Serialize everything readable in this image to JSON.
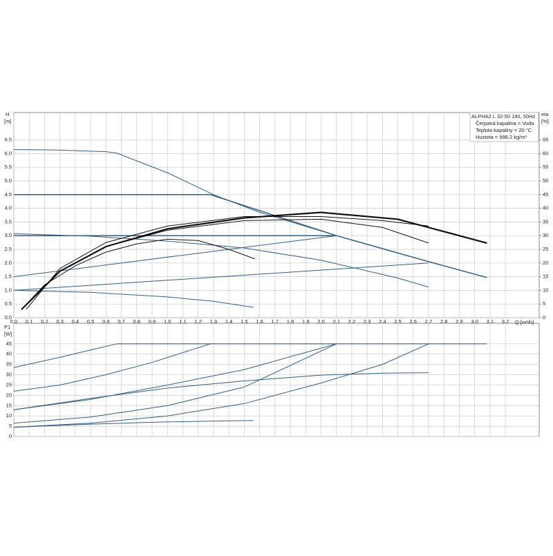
{
  "chart_data": [
    {
      "type": "line",
      "y_label": "H",
      "y_unit": "[m]",
      "y2_label": "eta",
      "y2_unit": "[%]",
      "x_label": "Q [m³/h]",
      "info_lines": [
        "ALPHA2 L 32-50 180, 50Hz",
        "Čerpaná kapalina = Voda",
        "Teplota kapaliny = 20 °C",
        "Hustota = 998.2 kg/m³"
      ],
      "xlim": [
        0,
        3.42
      ],
      "ylim": [
        0,
        7.5
      ],
      "y2lim": [
        0,
        75
      ],
      "grid": true,
      "xticks": [
        {
          "value": 0,
          "label": "0,0"
        },
        {
          "value": 0.1,
          "label": "0,1"
        },
        {
          "value": 0.2,
          "label": "0,2"
        },
        {
          "value": 0.3,
          "label": "0,3"
        },
        {
          "value": 0.4,
          "label": "0,4"
        },
        {
          "value": 0.5,
          "label": "0,5"
        },
        {
          "value": 0.6,
          "label": "0,6"
        },
        {
          "value": 0.7,
          "label": "0,7"
        },
        {
          "value": 0.8,
          "label": "0,8"
        },
        {
          "value": 0.9,
          "label": "0,9"
        },
        {
          "value": 1.0,
          "label": "1,0"
        },
        {
          "value": 1.1,
          "label": "1,1"
        },
        {
          "value": 1.2,
          "label": "1,2"
        },
        {
          "value": 1.3,
          "label": "1,3"
        },
        {
          "value": 1.4,
          "label": "1,4"
        },
        {
          "value": 1.5,
          "label": "1,5"
        },
        {
          "value": 1.6,
          "label": "1,6"
        },
        {
          "value": 1.7,
          "label": "1,7"
        },
        {
          "value": 1.8,
          "label": "1,8"
        },
        {
          "value": 1.9,
          "label": "1,9"
        },
        {
          "value": 2.0,
          "label": "2,0"
        },
        {
          "value": 2.1,
          "label": "2,1"
        },
        {
          "value": 2.2,
          "label": "2,2"
        },
        {
          "value": 2.3,
          "label": "2,3"
        },
        {
          "value": 2.4,
          "label": "2,4"
        },
        {
          "value": 2.5,
          "label": "2,5"
        },
        {
          "value": 2.6,
          "label": "2,6"
        },
        {
          "value": 2.7,
          "label": "2,7"
        },
        {
          "value": 2.8,
          "label": "2,8"
        },
        {
          "value": 2.9,
          "label": "2,9"
        },
        {
          "value": 3.0,
          "label": "3,0"
        },
        {
          "value": 3.1,
          "label": "3,1"
        },
        {
          "value": 3.2,
          "label": "3,2"
        }
      ],
      "yticks": [
        {
          "value": 0,
          "label": "0.0"
        },
        0.5,
        {
          "value": 1,
          "label": "1.0"
        },
        1.5,
        {
          "value": 2,
          "label": "2.0"
        },
        2.5,
        {
          "value": 3,
          "label": "3.0"
        },
        3.5,
        {
          "value": 4,
          "label": "4.0"
        },
        4.5,
        {
          "value": 5,
          "label": "5.0"
        },
        5.5,
        {
          "value": 6,
          "label": "6.0"
        },
        6.5
      ],
      "y2ticks": [
        0,
        5,
        10,
        15,
        20,
        25,
        30,
        35,
        40,
        45,
        50,
        55,
        60,
        65
      ],
      "series": [
        {
          "color": "#2f5d86",
          "width": 1,
          "x": [
            0,
            0.3,
            0.6,
            0.67,
            1.0,
            1.3,
            1.6,
            2.1,
            2.7,
            3.08
          ],
          "values": [
            6.15,
            6.13,
            6.07,
            6.02,
            5.3,
            4.5,
            3.85,
            3.0,
            2.05,
            1.47
          ]
        },
        {
          "color": "#2f5d86",
          "width": 1.5,
          "x": [
            0,
            1.28
          ],
          "values": [
            4.5,
            4.5
          ]
        },
        {
          "color": "#2f5d86",
          "width": 1.5,
          "x": [
            0,
            2.1
          ],
          "values": [
            3.0,
            3.0
          ]
        },
        {
          "color": "#2f5d86",
          "width": 1,
          "x": [
            0,
            2.1
          ],
          "values": [
            1.5,
            3.0
          ]
        },
        {
          "color": "#2f5d86",
          "width": 1,
          "x": [
            0,
            2.7
          ],
          "values": [
            1.0,
            2.0
          ]
        },
        {
          "color": "#2f5d86",
          "width": 1,
          "x": [
            0,
            0.5,
            1.0,
            1.5,
            2.0,
            2.5,
            2.7
          ],
          "values": [
            3.07,
            2.98,
            2.8,
            2.55,
            2.1,
            1.45,
            1.12
          ]
        },
        {
          "color": "#2f5d86",
          "width": 1,
          "x": [
            0,
            0.5,
            1.0,
            1.3,
            1.56
          ],
          "values": [
            1.0,
            0.93,
            0.76,
            0.6,
            0.38
          ]
        },
        {
          "color": "#2f5d86",
          "width": 1.5,
          "x": [
            1.28,
            2.1,
            2.7,
            3.08
          ],
          "values": [
            4.5,
            3.0,
            2.05,
            1.47
          ]
        },
        {
          "color": "#111111",
          "width": 1,
          "axis": "y2",
          "x": [
            0.05,
            0.2,
            0.4,
            0.6,
            0.8,
            1.0,
            1.2,
            1.4,
            1.57
          ],
          "values": [
            3,
            12,
            19,
            24,
            27,
            28.7,
            28.2,
            25,
            21.5
          ]
        },
        {
          "color": "#111111",
          "width": 1,
          "axis": "y2",
          "x": [
            0.05,
            0.3,
            0.6,
            1.0,
            1.5,
            2.0,
            2.4,
            2.7
          ],
          "values": [
            3,
            17,
            26,
            32,
            35.5,
            36,
            33,
            27.3
          ]
        },
        {
          "color": "#111111",
          "width": 1,
          "axis": "y2",
          "x": [
            0.08,
            0.3,
            0.6,
            1.0,
            1.5,
            2.0,
            2.4,
            2.7
          ],
          "values": [
            3,
            18,
            27.5,
            33.5,
            37,
            37,
            35.5,
            33.5
          ]
        },
        {
          "color": "#111111",
          "width": 2.2,
          "axis": "y2",
          "x": [
            0.05,
            0.3,
            0.6,
            1.0,
            1.5,
            2.0,
            2.5,
            3.08
          ],
          "values": [
            3,
            17,
            26,
            32.5,
            36.5,
            38.5,
            36,
            27.3
          ]
        }
      ]
    },
    {
      "type": "line",
      "y_label": "P1",
      "y_unit": "[W]",
      "xlim": [
        0,
        3.42
      ],
      "ylim": [
        0,
        55
      ],
      "grid": true,
      "xticks": [
        0,
        0.1,
        0.2,
        0.3,
        0.4,
        0.5,
        0.6,
        0.7,
        0.8,
        0.9,
        1,
        1.1,
        1.2,
        1.3,
        1.4,
        1.5,
        1.6,
        1.7,
        1.8,
        1.9,
        2,
        2.1,
        2.2,
        2.3,
        2.4,
        2.5,
        2.6,
        2.7,
        2.8,
        2.9,
        3,
        3.1,
        3.2
      ],
      "yticks": [
        0,
        5,
        10,
        15,
        20,
        25,
        30,
        35,
        40,
        45
      ],
      "series": [
        {
          "color": "#2f5d86",
          "width": 1.2,
          "x": [
            0.67,
            3.08
          ],
          "values": [
            45,
            45
          ]
        },
        {
          "color": "#2f5d86",
          "width": 1,
          "x": [
            0,
            0.3,
            0.67
          ],
          "values": [
            33.5,
            38.5,
            45
          ]
        },
        {
          "color": "#2f5d86",
          "width": 1,
          "x": [
            0,
            0.3,
            0.6,
            0.9,
            1.28
          ],
          "values": [
            22,
            25,
            30,
            36,
            45
          ]
        },
        {
          "color": "#2f5d86",
          "width": 1,
          "x": [
            0,
            0.5,
            1.0,
            1.5,
            2.1
          ],
          "values": [
            13,
            18,
            25,
            32.5,
            45
          ]
        },
        {
          "color": "#2f5d86",
          "width": 1,
          "x": [
            0,
            0.5,
            1.0,
            1.5,
            2.0,
            2.4,
            2.7
          ],
          "values": [
            13,
            18.5,
            23.5,
            27,
            29.8,
            30.8,
            31
          ]
        },
        {
          "color": "#2f5d86",
          "width": 1,
          "x": [
            0,
            0.5,
            1.0,
            1.5,
            2.1
          ],
          "values": [
            6.5,
            9.5,
            15,
            24,
            45
          ]
        },
        {
          "color": "#2f5d86",
          "width": 1,
          "x": [
            0,
            0.5,
            1.0,
            1.5,
            2.0,
            2.4,
            2.7
          ],
          "values": [
            4.5,
            6.5,
            10,
            16,
            26,
            35,
            45
          ]
        },
        {
          "color": "#2f5d86",
          "width": 1,
          "x": [
            0,
            0.5,
            1.0,
            1.56
          ],
          "values": [
            4.5,
            6,
            7.1,
            7.8
          ]
        }
      ]
    }
  ]
}
